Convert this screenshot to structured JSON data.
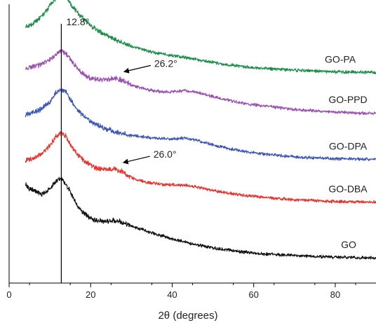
{
  "chart_data": {
    "type": "line",
    "xlabel": "2θ (degrees)",
    "ylabel": "",
    "xlim": [
      0,
      90
    ],
    "x_ticks": [
      0,
      20,
      40,
      60,
      80
    ],
    "x_tick_labels": [
      "0",
      "20",
      "40",
      "60",
      "80"
    ],
    "y_ticks_shown": false,
    "grid": false,
    "legend": "none (series names printed at right end of each curve)",
    "series": [
      {
        "name": "GO-PA",
        "color": "#1e8c4a",
        "offset": 4,
        "points": [
          [
            4,
            2.2
          ],
          [
            6,
            2.35
          ],
          [
            8,
            2.65
          ],
          [
            10,
            3.1
          ],
          [
            11.5,
            3.45
          ],
          [
            12.8,
            3.6
          ],
          [
            14,
            3.5
          ],
          [
            15,
            3.2
          ],
          [
            17,
            2.75
          ],
          [
            20,
            2.25
          ],
          [
            23,
            1.9
          ],
          [
            26,
            1.65
          ],
          [
            30,
            1.35
          ],
          [
            35,
            1.1
          ],
          [
            40,
            0.95
          ],
          [
            45,
            0.82
          ],
          [
            50,
            0.65
          ],
          [
            55,
            0.52
          ],
          [
            60,
            0.42
          ],
          [
            70,
            0.32
          ],
          [
            80,
            0.25
          ],
          [
            90,
            0.22
          ]
        ]
      },
      {
        "name": "GO-PPD",
        "color": "#9b4fb0",
        "offset": 3,
        "points": [
          [
            4,
            2.35
          ],
          [
            6,
            2.45
          ],
          [
            8,
            2.55
          ],
          [
            10,
            2.75
          ],
          [
            11.5,
            3.0
          ],
          [
            12.8,
            3.15
          ],
          [
            14,
            3.0
          ],
          [
            16,
            2.55
          ],
          [
            18,
            2.15
          ],
          [
            20,
            1.95
          ],
          [
            22,
            1.88
          ],
          [
            24,
            1.9
          ],
          [
            26.2,
            1.95
          ],
          [
            28,
            1.85
          ],
          [
            30,
            1.65
          ],
          [
            34,
            1.45
          ],
          [
            38,
            1.35
          ],
          [
            41,
            1.38
          ],
          [
            43,
            1.42
          ],
          [
            46,
            1.35
          ],
          [
            50,
            1.15
          ],
          [
            55,
            0.95
          ],
          [
            60,
            0.8
          ],
          [
            70,
            0.6
          ],
          [
            80,
            0.48
          ],
          [
            90,
            0.42
          ]
        ]
      },
      {
        "name": "GO-DPA",
        "color": "#3c55b4",
        "offset": 2,
        "points": [
          [
            4,
            2.35
          ],
          [
            6,
            2.45
          ],
          [
            8,
            2.6
          ],
          [
            10,
            2.9
          ],
          [
            11.5,
            3.3
          ],
          [
            12.8,
            3.45
          ],
          [
            14,
            3.3
          ],
          [
            15,
            3.0
          ],
          [
            17,
            2.5
          ],
          [
            20,
            2.05
          ],
          [
            23,
            1.8
          ],
          [
            26,
            1.6
          ],
          [
            30,
            1.45
          ],
          [
            35,
            1.35
          ],
          [
            40,
            1.3
          ],
          [
            43,
            1.35
          ],
          [
            46,
            1.25
          ],
          [
            50,
            1.05
          ],
          [
            55,
            0.85
          ],
          [
            60,
            0.7
          ],
          [
            70,
            0.52
          ],
          [
            80,
            0.45
          ],
          [
            90,
            0.42
          ]
        ]
      },
      {
        "name": "GO-DBA",
        "color": "#e8332c",
        "offset": 1,
        "points": [
          [
            4,
            2.35
          ],
          [
            6,
            2.45
          ],
          [
            8,
            2.65
          ],
          [
            10,
            3.0
          ],
          [
            11.5,
            3.4
          ],
          [
            12.8,
            3.55
          ],
          [
            14,
            3.4
          ],
          [
            15,
            3.05
          ],
          [
            17,
            2.55
          ],
          [
            19,
            2.25
          ],
          [
            21,
            2.05
          ],
          [
            23,
            1.95
          ],
          [
            26,
            1.98
          ],
          [
            28,
            1.85
          ],
          [
            30,
            1.6
          ],
          [
            34,
            1.4
          ],
          [
            38,
            1.3
          ],
          [
            42,
            1.3
          ],
          [
            46,
            1.2
          ],
          [
            50,
            1.05
          ],
          [
            55,
            0.9
          ],
          [
            60,
            0.8
          ],
          [
            70,
            0.65
          ],
          [
            80,
            0.58
          ],
          [
            90,
            0.55
          ]
        ]
      },
      {
        "name": "GO",
        "color": "#111111",
        "offset": 0,
        "points": [
          [
            4,
            3.3
          ],
          [
            5,
            3.1
          ],
          [
            6,
            3.05
          ],
          [
            8,
            2.85
          ],
          [
            10,
            3.1
          ],
          [
            11.5,
            3.45
          ],
          [
            12.8,
            3.55
          ],
          [
            14,
            3.3
          ],
          [
            15.5,
            2.8
          ],
          [
            17,
            2.3
          ],
          [
            19,
            1.95
          ],
          [
            21,
            1.75
          ],
          [
            23,
            1.7
          ],
          [
            25,
            1.75
          ],
          [
            27,
            1.7
          ],
          [
            30,
            1.5
          ],
          [
            35,
            1.2
          ],
          [
            40,
            0.95
          ],
          [
            45,
            0.72
          ],
          [
            50,
            0.55
          ],
          [
            55,
            0.42
          ],
          [
            60,
            0.32
          ],
          [
            70,
            0.22
          ],
          [
            80,
            0.15
          ],
          [
            90,
            0.12
          ]
        ]
      }
    ],
    "annotations": [
      {
        "text": "12.8°",
        "kind": "vertical-line",
        "x": 12.8
      },
      {
        "text": "26.2°",
        "kind": "arrow",
        "target_series": "GO-PPD",
        "x": 26.2
      },
      {
        "text": "26.0°",
        "kind": "arrow",
        "target_series": "GO-DBA",
        "x": 26.0
      }
    ]
  }
}
